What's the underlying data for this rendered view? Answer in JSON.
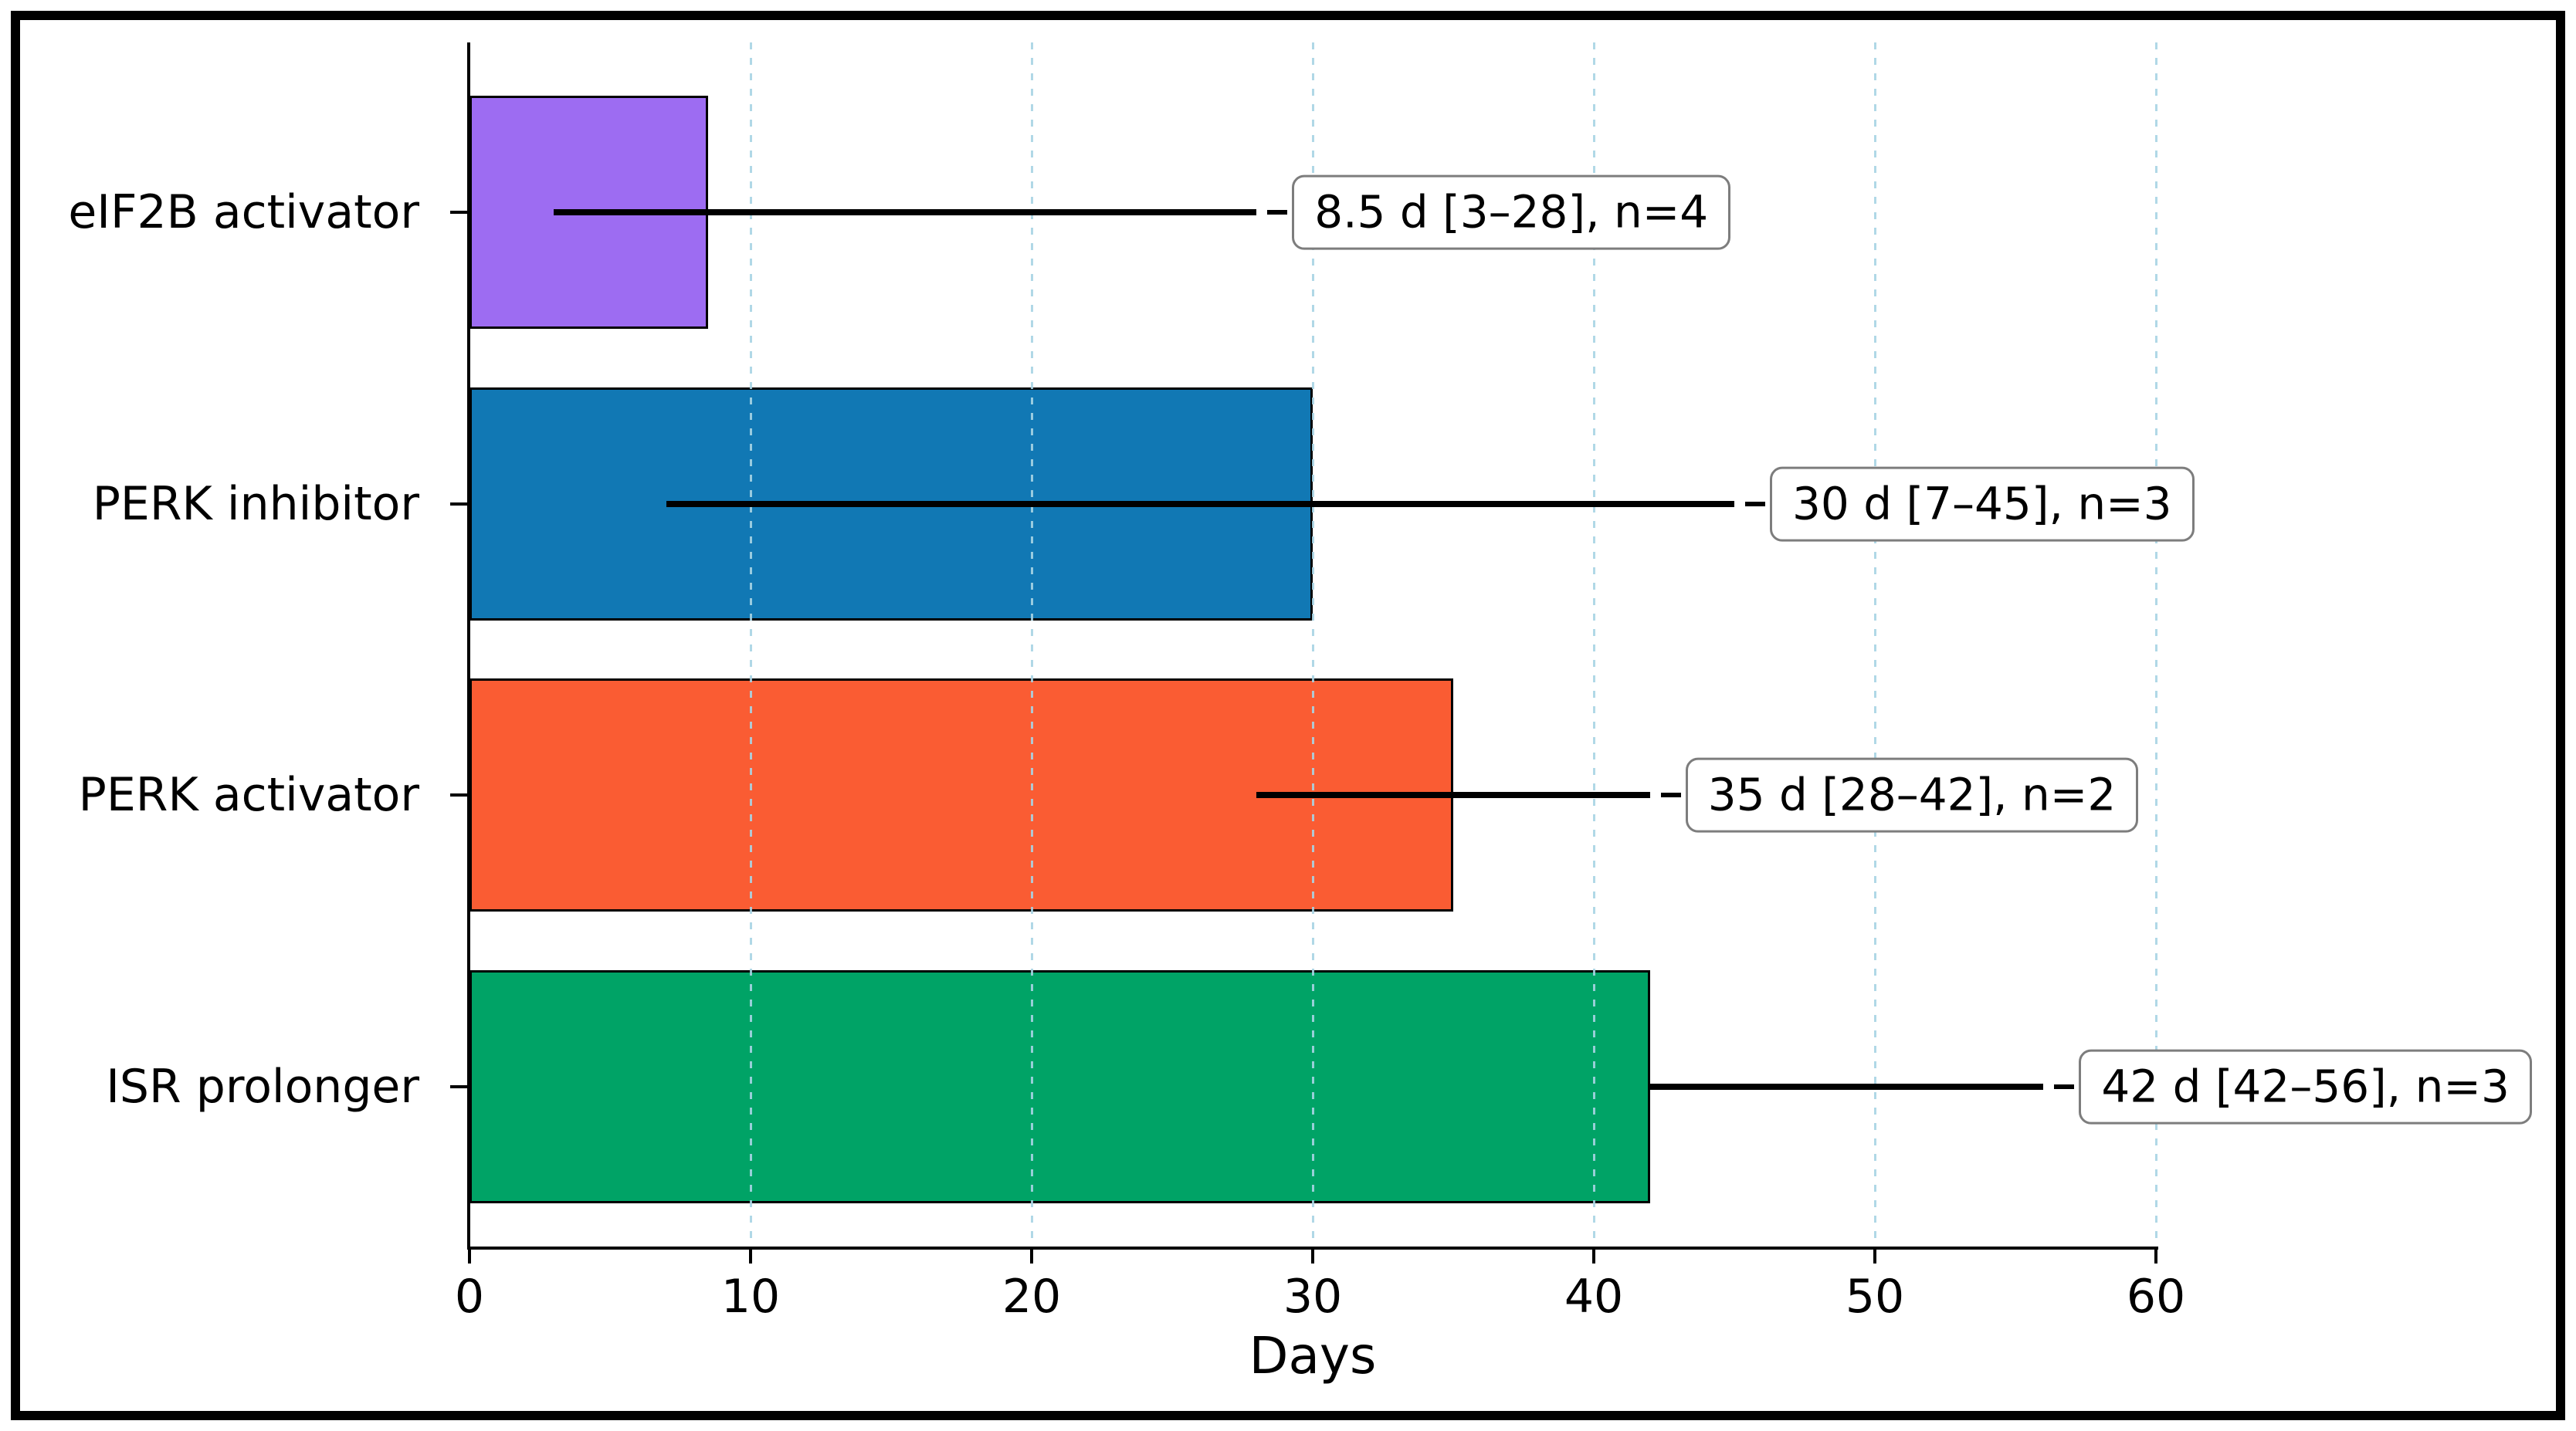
{
  "chart_data": {
    "type": "bar",
    "orientation": "horizontal",
    "title": "",
    "xlabel": "Days",
    "ylabel": "",
    "xlim": [
      0,
      60
    ],
    "x_ticks": [
      0,
      10,
      20,
      30,
      40,
      50,
      60
    ],
    "grid": "vertical dashed light-blue lines at each x tick, drawn over bars",
    "legend": "none",
    "categories": [
      "eIF2B activator",
      "PERK inhibitor",
      "PERK activator",
      "ISR prolonger"
    ],
    "rows": [
      {
        "category": "eIF2B activator",
        "median_days": 8.5,
        "range_low": 3,
        "range_high": 28,
        "n": 4,
        "annotation": "8.5 d [3–28], n=4",
        "color": "#9d6cf2"
      },
      {
        "category": "PERK inhibitor",
        "median_days": 30,
        "range_low": 7,
        "range_high": 45,
        "n": 3,
        "annotation": "30 d [7–45], n=3",
        "color": "#1178b4"
      },
      {
        "category": "PERK activator",
        "median_days": 35,
        "range_low": 28,
        "range_high": 42,
        "n": 2,
        "annotation": "35 d [28–42], n=2",
        "color": "#fa5c33"
      },
      {
        "category": "ISR prolonger",
        "median_days": 42,
        "range_low": 42,
        "range_high": 56,
        "n": 3,
        "annotation": "42 d [42–56], n=3",
        "color": "#00a366"
      }
    ],
    "style": {
      "bar_edge_color": "#000000",
      "error_bar_color": "#000000",
      "annotation_box_border": "#7d7d7d",
      "annotation_box_background": "#ffffff",
      "grid_color": "#a8d4e4",
      "figure_border_color": "#000000"
    }
  }
}
